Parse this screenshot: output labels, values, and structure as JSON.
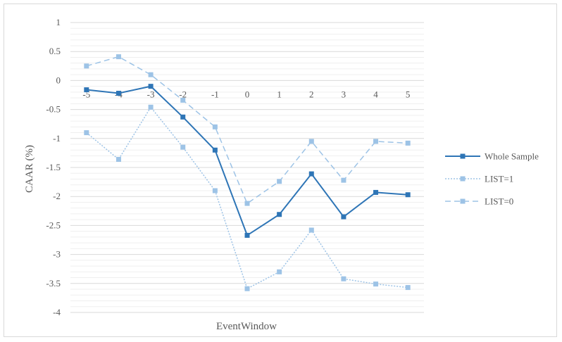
{
  "chart_data": {
    "type": "line",
    "xlabel": "EventWindow",
    "ylabel": "CAAR (%)",
    "categories": [
      "-5",
      "-4",
      "-3",
      "-2",
      "-1",
      "0",
      "1",
      "2",
      "3",
      "4",
      "5"
    ],
    "ylim": [
      -4,
      1
    ],
    "yticks": [
      1,
      0.5,
      0,
      -0.5,
      -1,
      -1.5,
      -2,
      -2.5,
      -3,
      -3.5,
      -4
    ],
    "ytick_labels": [
      "1",
      "0.5",
      "0",
      "-0.5",
      "-1",
      "-1.5",
      "-2",
      "-2.5",
      "-3",
      "-3.5",
      "-4"
    ],
    "grid": true,
    "legend_position": "right",
    "series": [
      {
        "name": "Whole Sample",
        "style": "solid",
        "color": "#2e75b6",
        "values": [
          -0.16,
          -0.22,
          -0.1,
          -0.63,
          -1.2,
          -2.67,
          -2.31,
          -1.61,
          -2.35,
          -1.93,
          -1.97
        ]
      },
      {
        "name": "LIST=1",
        "style": "dotted",
        "color": "#9dc3e6",
        "values": [
          -0.9,
          -1.36,
          -0.46,
          -1.15,
          -1.9,
          -3.59,
          -3.3,
          -2.58,
          -3.42,
          -3.51,
          -3.57
        ]
      },
      {
        "name": "LIST=0",
        "style": "dashed",
        "color": "#9dc3e6",
        "values": [
          0.25,
          0.41,
          0.1,
          -0.34,
          -0.8,
          -2.12,
          -1.74,
          -1.05,
          -1.72,
          -1.05,
          -1.08
        ]
      }
    ]
  }
}
